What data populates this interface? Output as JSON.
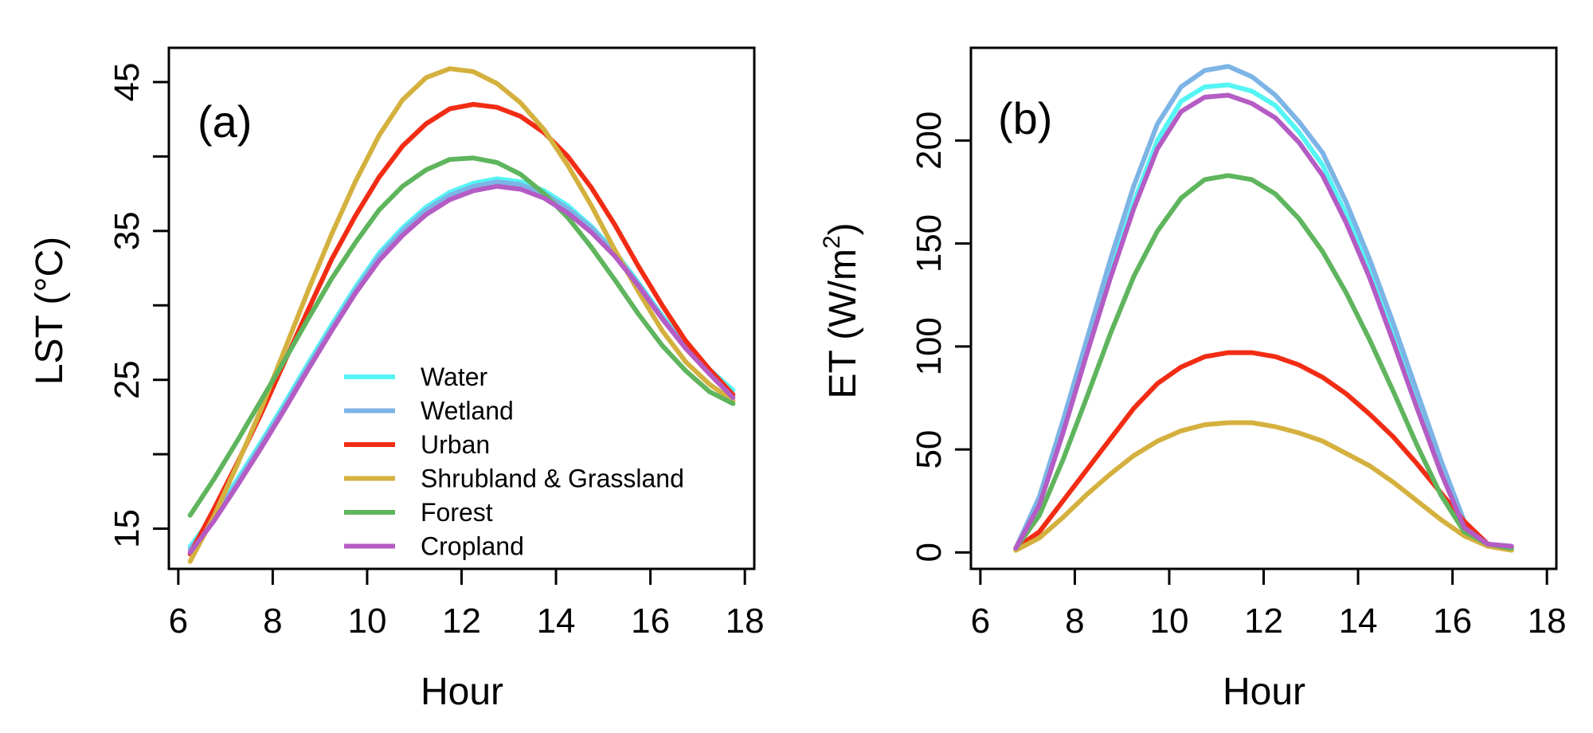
{
  "chart_data": [
    {
      "type": "line",
      "panel_label": "(a)",
      "xlabel": "Hour",
      "ylabel": "LST (°C)",
      "xlim": [
        5.8,
        18.2
      ],
      "ylim": [
        12.3,
        47.3
      ],
      "xticks": [
        6,
        8,
        10,
        12,
        14,
        16,
        18
      ],
      "yticks": [
        15,
        20,
        25,
        30,
        35,
        40,
        45
      ],
      "ytick_labels": [
        "15",
        "",
        "25",
        "",
        "35",
        "",
        "45"
      ],
      "legend": "bottom-center",
      "x": [
        6.25,
        6.75,
        7.25,
        7.75,
        8.25,
        8.75,
        9.25,
        9.75,
        10.25,
        10.75,
        11.25,
        11.75,
        12.25,
        12.75,
        13.25,
        13.75,
        14.25,
        14.75,
        15.25,
        15.75,
        16.25,
        16.75,
        17.25,
        17.75
      ],
      "series": [
        {
          "name": "Water",
          "color": "#55f5f5",
          "values": [
            13.8,
            15.9,
            18.3,
            20.8,
            23.4,
            26.1,
            28.7,
            31.2,
            33.5,
            35.2,
            36.6,
            37.6,
            38.2,
            38.5,
            38.3,
            37.7,
            36.7,
            35.3,
            33.6,
            31.5,
            29.3,
            27.3,
            25.7,
            24.3
          ]
        },
        {
          "name": "Wetland",
          "color": "#7cb4e6",
          "values": [
            13.6,
            15.7,
            18.1,
            20.6,
            23.2,
            25.9,
            28.5,
            31.0,
            33.3,
            35.0,
            36.4,
            37.4,
            38.0,
            38.3,
            38.1,
            37.5,
            36.5,
            35.2,
            33.5,
            31.4,
            29.2,
            27.2,
            25.5,
            24.0
          ]
        },
        {
          "name": "Urban",
          "color": "#f22c14",
          "values": [
            13.3,
            16.3,
            19.4,
            22.7,
            26.2,
            29.7,
            33.1,
            36.0,
            38.6,
            40.7,
            42.2,
            43.2,
            43.5,
            43.3,
            42.7,
            41.6,
            40.0,
            37.9,
            35.4,
            32.6,
            30.0,
            27.6,
            25.7,
            24.0
          ]
        },
        {
          "name": "Shrubland & Grassland",
          "color": "#d4b13e",
          "values": [
            12.8,
            15.8,
            19.3,
            23.0,
            27.0,
            31.0,
            34.8,
            38.3,
            41.4,
            43.8,
            45.3,
            45.9,
            45.7,
            44.9,
            43.6,
            41.8,
            39.4,
            36.7,
            33.7,
            30.9,
            28.3,
            26.2,
            24.7,
            23.6
          ]
        },
        {
          "name": "Forest",
          "color": "#5fb55d",
          "values": [
            15.9,
            18.3,
            20.9,
            23.6,
            26.3,
            29.1,
            31.8,
            34.2,
            36.4,
            38.0,
            39.1,
            39.8,
            39.9,
            39.6,
            38.8,
            37.5,
            35.9,
            33.9,
            31.7,
            29.4,
            27.3,
            25.6,
            24.2,
            23.4
          ]
        },
        {
          "name": "Cropland",
          "color": "#b45cc4",
          "values": [
            13.4,
            15.5,
            17.9,
            20.4,
            23.0,
            25.7,
            28.3,
            30.8,
            33.0,
            34.7,
            36.1,
            37.1,
            37.7,
            38.0,
            37.8,
            37.2,
            36.2,
            34.9,
            33.3,
            31.3,
            29.1,
            27.1,
            25.4,
            23.8
          ]
        }
      ]
    },
    {
      "type": "line",
      "panel_label": "(b)",
      "xlabel": "Hour",
      "ylabel_main": "ET (W/m",
      "ylabel_sup": "2",
      "ylabel_end": ")",
      "xlim": [
        5.8,
        18.2
      ],
      "ylim": [
        -8,
        245
      ],
      "xticks": [
        6,
        8,
        10,
        12,
        14,
        16,
        18
      ],
      "yticks": [
        0,
        50,
        100,
        150,
        200
      ],
      "x": [
        6.75,
        7.25,
        7.75,
        8.25,
        8.75,
        9.25,
        9.75,
        10.25,
        10.75,
        11.25,
        11.75,
        12.25,
        12.75,
        13.25,
        13.75,
        14.25,
        14.75,
        15.25,
        15.75,
        16.25,
        16.75,
        17.25
      ],
      "series": [
        {
          "name": "Water",
          "color": "#55f5f5",
          "values": [
            2,
            25,
            60,
            97,
            135,
            170,
            200,
            219,
            226,
            227,
            224,
            217,
            204,
            188,
            164,
            137,
            106,
            73,
            40,
            12,
            3,
            2
          ]
        },
        {
          "name": "Wetland",
          "color": "#7cb4e6",
          "values": [
            2,
            27,
            64,
            103,
            142,
            178,
            208,
            226,
            234,
            236,
            231,
            222,
            209,
            194,
            170,
            142,
            111,
            78,
            45,
            15,
            4,
            3
          ]
        },
        {
          "name": "Urban",
          "color": "#f22c14",
          "values": [
            2,
            10,
            25,
            40,
            55,
            70,
            82,
            90,
            95,
            97,
            97,
            95,
            91,
            85,
            77,
            67,
            56,
            43,
            29,
            15,
            4,
            2
          ]
        },
        {
          "name": "Shrubland & Grassland",
          "color": "#d4b13e",
          "values": [
            1,
            7,
            17,
            28,
            38,
            47,
            54,
            59,
            62,
            63,
            63,
            61,
            58,
            54,
            48,
            42,
            34,
            25,
            16,
            8,
            3,
            1
          ]
        },
        {
          "name": "Forest",
          "color": "#5fb55d",
          "values": [
            2,
            18,
            45,
            75,
            106,
            134,
            156,
            172,
            181,
            183,
            181,
            174,
            162,
            146,
            126,
            103,
            78,
            52,
            28,
            10,
            4,
            2
          ]
        },
        {
          "name": "Cropland",
          "color": "#b45cc4",
          "values": [
            2,
            23,
            58,
            96,
            133,
            167,
            196,
            214,
            221,
            222,
            218,
            211,
            199,
            183,
            160,
            133,
            102,
            70,
            39,
            12,
            4,
            3
          ]
        }
      ]
    }
  ]
}
